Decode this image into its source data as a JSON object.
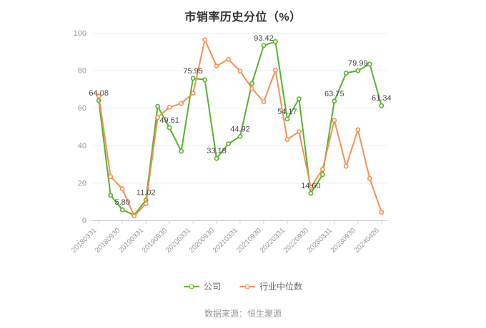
{
  "title": "市销率历史分位（%）",
  "source_note": "数据来源：恒生聚源",
  "colors": {
    "company": "#54b32b",
    "industry": "#f98e52",
    "grid_line": "#e9edf3",
    "axis_line": "#c9ccd4",
    "axis_text": "#999999",
    "point_label_text": "#444444",
    "title_text": "#333333",
    "legend_text": "#666666"
  },
  "chart_data": {
    "type": "line",
    "title": "市销率历史分位（%）",
    "xlabel": "",
    "ylabel": "",
    "ylim": [
      0,
      100
    ],
    "yticks": [
      0,
      20,
      40,
      60,
      80,
      100
    ],
    "grid": true,
    "legend_position": "bottom",
    "x_tick_labels": [
      "20180331",
      "20180930",
      "20190331",
      "20190930",
      "20200331",
      "20200930",
      "20210331",
      "20210930",
      "20220331",
      "20220930",
      "20230331",
      "20230930",
      "20240426"
    ],
    "label_every": 2,
    "series": [
      {
        "name": "公司",
        "color": "#54b32b",
        "marker": "hollow-circle",
        "values": [
          64.08,
          13.5,
          5.8,
          3.0,
          11.02,
          61.0,
          49.61,
          37.0,
          75.95,
          75.2,
          33.18,
          41.0,
          44.92,
          73.2,
          93.42,
          95.5,
          54.17,
          65.0,
          14.6,
          24.6,
          63.75,
          78.7,
          79.99,
          83.5,
          61.34
        ],
        "point_labels": [
          "64.08",
          null,
          "5.80",
          null,
          "11.02",
          null,
          "49.61",
          null,
          "75.95",
          null,
          "33.18",
          null,
          "44.92",
          null,
          "93.42",
          null,
          "54.17",
          null,
          "14.60",
          null,
          "63.75",
          null,
          "79.99",
          null,
          "61.34"
        ]
      },
      {
        "name": "行业中位数",
        "color": "#f98e52",
        "marker": "hollow-circle",
        "values": [
          66.5,
          23.5,
          17.0,
          2.5,
          9.0,
          55.0,
          60.5,
          62.5,
          68.0,
          96.5,
          82.5,
          86.0,
          79.8,
          70.5,
          63.4,
          80.3,
          43.3,
          47.5,
          17.8,
          27.5,
          53.5,
          29.0,
          48.5,
          22.5,
          4.5
        ],
        "point_labels": []
      }
    ]
  },
  "legend": {
    "items": [
      {
        "label": "公司"
      },
      {
        "label": "行业中位数"
      }
    ]
  }
}
